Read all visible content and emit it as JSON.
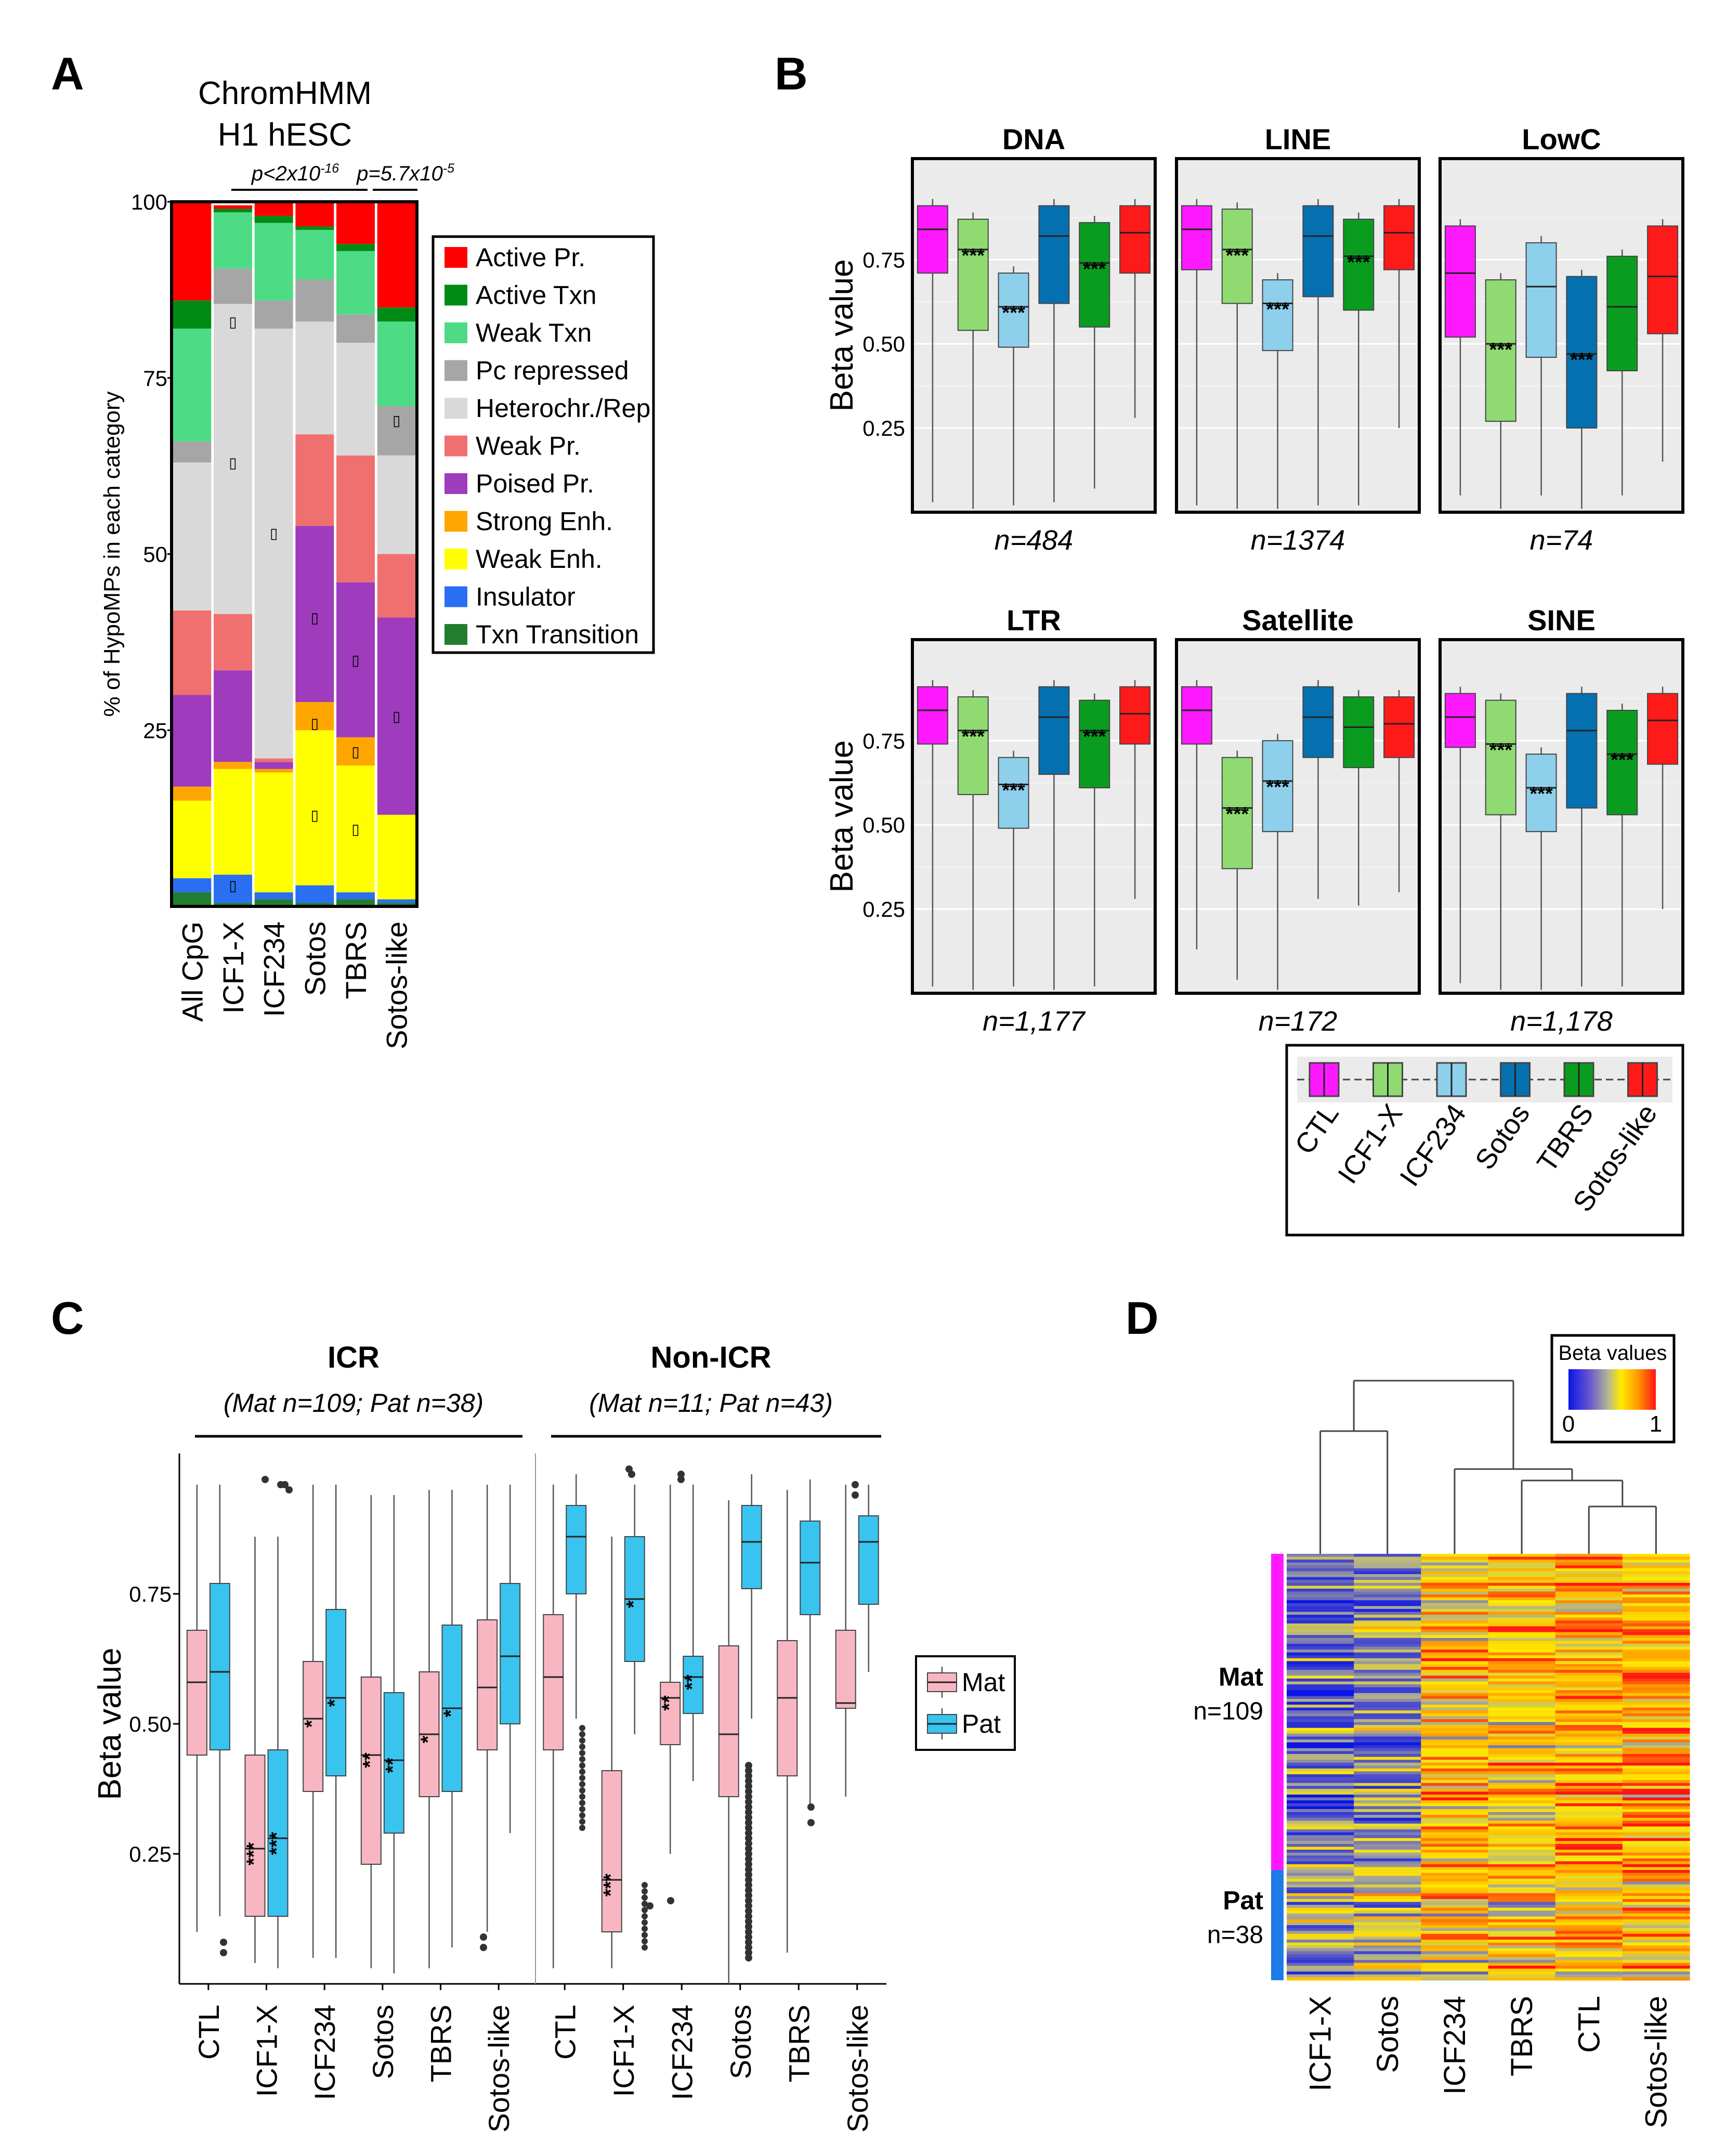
{
  "panel_letters": [
    "A",
    "B",
    "C",
    "D"
  ],
  "chart_data": [
    {
      "panel": "A",
      "type": "bar",
      "stacked": true,
      "title": "ChromHMM",
      "subtitle": "H1 hESC",
      "ylabel": "% of HypoMPs in each category",
      "ylim": [
        0,
        100
      ],
      "yticks": [
        "100",
        "75",
        "50",
        "25"
      ],
      "categories": [
        "All CpG",
        "ICF1-X",
        "ICF234",
        "Sotos",
        "TBRS",
        "Sotos-like"
      ],
      "pvalue_1": "p<2x10-16",
      "pvalue_2": "p=5.7x10-5",
      "bracket_marker": "▯",
      "legend": [
        "Active Pr.",
        "Active Txn",
        "Weak Txn",
        "Pc repressed",
        "Heterochr./Rep",
        "Weak Pr.",
        "Poised Pr.",
        "Strong Enh.",
        "Weak Enh.",
        "Insulator",
        "Txn Transition"
      ],
      "colors": [
        "#ff0000",
        "#008b15",
        "#4ddc85",
        "#a6a6a6",
        "#d9d9d9",
        "#f07070",
        "#9e3cbd",
        "#ffa500",
        "#ffff00",
        "#2a6ff2",
        "#227d2e"
      ],
      "series": [
        {
          "name": "Txn Transition",
          "values": [
            2,
            0.5,
            1,
            0.5,
            1,
            0.5
          ]
        },
        {
          "name": "Insulator",
          "values": [
            2,
            4,
            1,
            2.5,
            1,
            0.5
          ]
        },
        {
          "name": "Weak Enh.",
          "values": [
            11,
            15,
            17,
            22,
            18,
            12
          ]
        },
        {
          "name": "Strong Enh.",
          "values": [
            2,
            1,
            0.5,
            4,
            4,
            0
          ]
        },
        {
          "name": "Poised Pr.",
          "values": [
            13,
            13,
            1,
            25,
            22,
            28
          ]
        },
        {
          "name": "Weak Pr.",
          "values": [
            12,
            8,
            0.5,
            13,
            18,
            9
          ]
        },
        {
          "name": "Heterochr./Rep",
          "values": [
            21,
            44,
            61,
            16,
            16,
            14
          ]
        },
        {
          "name": "Pc repressed",
          "values": [
            3,
            5,
            4,
            6,
            4,
            7
          ]
        },
        {
          "name": "Weak Txn",
          "values": [
            16,
            8,
            11,
            7,
            9,
            12
          ]
        },
        {
          "name": "Active Txn",
          "values": [
            4,
            0.5,
            1,
            0.5,
            1,
            2
          ]
        },
        {
          "name": "Active Pr.",
          "values": [
            14,
            0.5,
            2,
            3.5,
            6,
            15
          ]
        }
      ]
    },
    {
      "panel": "B",
      "type": "boxplot",
      "ylabel": "Beta value",
      "yticks": [
        "0.75",
        "0.50",
        "0.25"
      ],
      "ylim": [
        0,
        1.05
      ],
      "groups": [
        "CTL",
        "ICF1-X",
        "ICF234",
        "Sotos",
        "TBRS",
        "Sotos-like"
      ],
      "group_colors": [
        "#ff19ff",
        "#8fdb72",
        "#8ed0ec",
        "#0570b0",
        "#0a9c1f",
        "#ff1a1a"
      ],
      "sig": "***",
      "facets": [
        {
          "title": "DNA",
          "n": "n=484",
          "q1": [
            0.71,
            0.54,
            0.49,
            0.62,
            0.55,
            0.71
          ],
          "median": [
            0.84,
            0.78,
            0.61,
            0.82,
            0.74,
            0.83
          ],
          "q3": [
            0.91,
            0.87,
            0.71,
            0.91,
            0.86,
            0.91
          ],
          "wlo": [
            0.03,
            0.01,
            0.02,
            0.03,
            0.07,
            0.28
          ],
          "stars": [
            false,
            true,
            true,
            false,
            true,
            false
          ]
        },
        {
          "title": "LINE",
          "n": "n=1374",
          "q1": [
            0.72,
            0.62,
            0.48,
            0.64,
            0.6,
            0.72
          ],
          "median": [
            0.84,
            0.78,
            0.62,
            0.82,
            0.76,
            0.83
          ],
          "q3": [
            0.91,
            0.9,
            0.69,
            0.91,
            0.87,
            0.91
          ],
          "wlo": [
            0.02,
            0.01,
            0.01,
            0.02,
            0.02,
            0.25
          ],
          "stars": [
            false,
            true,
            true,
            false,
            true,
            false
          ]
        },
        {
          "title": "LowC",
          "n": "n=74",
          "q1": [
            0.52,
            0.27,
            0.46,
            0.25,
            0.42,
            0.53
          ],
          "median": [
            0.71,
            0.5,
            0.67,
            0.47,
            0.61,
            0.7
          ],
          "q3": [
            0.85,
            0.69,
            0.8,
            0.7,
            0.76,
            0.85
          ],
          "wlo": [
            0.05,
            0.01,
            0.05,
            0.01,
            0.05,
            0.15
          ],
          "stars": [
            false,
            true,
            false,
            true,
            false,
            false
          ]
        },
        {
          "title": "LTR",
          "n": "n=1,177",
          "q1": [
            0.74,
            0.59,
            0.49,
            0.65,
            0.61,
            0.74
          ],
          "median": [
            0.84,
            0.78,
            0.62,
            0.82,
            0.78,
            0.83
          ],
          "q3": [
            0.91,
            0.88,
            0.7,
            0.91,
            0.87,
            0.91
          ],
          "wlo": [
            0.02,
            0.01,
            0.02,
            0.01,
            0.02,
            0.28
          ],
          "stars": [
            false,
            true,
            true,
            false,
            true,
            false
          ]
        },
        {
          "title": "Satellite",
          "n": "n=172",
          "q1": [
            0.74,
            0.37,
            0.48,
            0.7,
            0.67,
            0.7
          ],
          "median": [
            0.84,
            0.55,
            0.63,
            0.82,
            0.79,
            0.8
          ],
          "q3": [
            0.91,
            0.7,
            0.75,
            0.91,
            0.88,
            0.88
          ],
          "wlo": [
            0.13,
            0.04,
            0.01,
            0.28,
            0.26,
            0.3
          ],
          "stars": [
            false,
            true,
            true,
            false,
            false,
            false
          ]
        },
        {
          "title": "SINE",
          "n": "n=1,178",
          "q1": [
            0.73,
            0.53,
            0.48,
            0.55,
            0.53,
            0.68
          ],
          "median": [
            0.82,
            0.74,
            0.61,
            0.78,
            0.71,
            0.81
          ],
          "q3": [
            0.89,
            0.87,
            0.71,
            0.89,
            0.84,
            0.89
          ],
          "wlo": [
            0.03,
            0.01,
            0.01,
            0.02,
            0.02,
            0.25
          ],
          "stars": [
            false,
            true,
            true,
            false,
            true,
            false
          ]
        }
      ]
    },
    {
      "panel": "C",
      "type": "boxplot",
      "ylabel": "Beta value",
      "yticks": [
        "0.75",
        "0.50",
        "0.25"
      ],
      "ylim": [
        0,
        1
      ],
      "legend": [
        "Mat",
        "Pat"
      ],
      "colors": [
        "#f7b6c2",
        "#39c3ef"
      ],
      "categories": [
        "CTL",
        "ICF1-X",
        "ICF234",
        "Sotos",
        "TBRS",
        "Sotos-like"
      ],
      "facets": [
        {
          "title": "ICR",
          "subtitle": "(Mat n=109; Pat n=38)",
          "mat": {
            "q1": [
              0.44,
              0.13,
              0.37,
              0.23,
              0.36,
              0.45
            ],
            "median": [
              0.58,
              0.26,
              0.51,
              0.44,
              0.48,
              0.57
            ],
            "q3": [
              0.68,
              0.44,
              0.62,
              0.59,
              0.6,
              0.7
            ],
            "whi": [
              0.96,
              0.86,
              0.96,
              0.94,
              0.95,
              0.96
            ],
            "wlo": [
              0.1,
              0.04,
              0.05,
              0.03,
              0.03,
              0.1
            ],
            "sig": [
              "",
              "***",
              "*",
              "**",
              "*",
              ""
            ]
          },
          "pat": {
            "q1": [
              0.45,
              0.13,
              0.4,
              0.29,
              0.37,
              0.5
            ],
            "median": [
              0.6,
              0.28,
              0.55,
              0.43,
              0.53,
              0.63
            ],
            "q3": [
              0.77,
              0.45,
              0.72,
              0.56,
              0.69,
              0.77
            ],
            "whi": [
              0.96,
              0.86,
              0.96,
              0.94,
              0.95,
              0.96
            ],
            "wlo": [
              0.13,
              0.03,
              0.05,
              0.02,
              0.07,
              0.29
            ],
            "sig": [
              "",
              "***",
              "*",
              "**",
              "*",
              ""
            ]
          }
        },
        {
          "title": "Non-ICR",
          "subtitle": "(Mat n=11; Pat n=43)",
          "mat": {
            "q1": [
              0.45,
              0.1,
              0.46,
              0.36,
              0.4,
              0.53
            ],
            "median": [
              0.59,
              0.2,
              0.55,
              0.48,
              0.55,
              0.54
            ],
            "q3": [
              0.71,
              0.41,
              0.58,
              0.65,
              0.66,
              0.68
            ],
            "whi": [
              0.96,
              0.86,
              0.96,
              0.93,
              0.95,
              0.96
            ],
            "wlo": [
              0.03,
              0.03,
              0.25,
              0.0,
              0.06,
              0.36
            ],
            "sig": [
              "",
              "***",
              "**",
              "",
              "",
              ""
            ]
          },
          "pat": {
            "q1": [
              0.75,
              0.62,
              0.52,
              0.76,
              0.71,
              0.73
            ],
            "median": [
              0.86,
              0.74,
              0.59,
              0.85,
              0.81,
              0.85
            ],
            "q3": [
              0.92,
              0.86,
              0.63,
              0.92,
              0.89,
              0.9
            ],
            "whi": [
              0.98,
              0.96,
              0.96,
              0.98,
              0.97,
              0.96
            ],
            "wlo": [
              0.51,
              0.48,
              0.39,
              0.51,
              0.34,
              0.6
            ],
            "sig": [
              "",
              "*",
              "**",
              "",
              "",
              ""
            ]
          }
        }
      ]
    },
    {
      "panel": "D",
      "type": "heatmap",
      "legend_title": "Beta values",
      "legend_min": "0",
      "legend_max": "1",
      "columns": [
        "ICF1-X",
        "Sotos",
        "ICF234",
        "TBRS",
        "CTL",
        "Sotos-like"
      ],
      "row_groups": [
        {
          "name": "Mat",
          "n": "n=109",
          "rows": 109,
          "color": "#ff19ff",
          "column_means": [
            0.3,
            0.38,
            0.7,
            0.7,
            0.78,
            0.78
          ]
        },
        {
          "name": "Pat",
          "n": "n=38",
          "rows": 38,
          "color": "#1e7be8",
          "column_means": [
            0.4,
            0.5,
            0.6,
            0.62,
            0.68,
            0.68
          ]
        }
      ]
    }
  ]
}
